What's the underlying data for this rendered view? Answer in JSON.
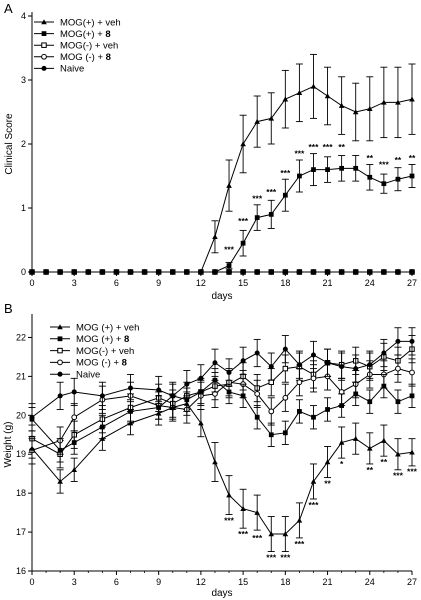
{
  "chart_data": [
    {
      "type": "line",
      "panel_letter": "A",
      "xlabel": "days",
      "ylabel": "Clinical Score",
      "xlim": [
        0,
        27
      ],
      "ylim": [
        0,
        4
      ],
      "x_ticks": [
        0,
        3,
        6,
        9,
        12,
        15,
        18,
        21,
        24,
        27
      ],
      "y_ticks": [
        0,
        1,
        2,
        3,
        4
      ],
      "legend_position": "top-left",
      "legend": [
        {
          "prefix": "MOG(+) + veh",
          "suffix": ""
        },
        {
          "prefix": "MOG(+) + ",
          "suffix": "8"
        },
        {
          "prefix": "MOG(-) + veh",
          "suffix": ""
        },
        {
          "prefix": "MOG (-) + ",
          "suffix": "8"
        },
        {
          "prefix": "Naive",
          "suffix": ""
        }
      ],
      "series": [
        {
          "marker": "triangle-filled",
          "x": [
            0,
            1,
            2,
            3,
            4,
            5,
            6,
            7,
            8,
            9,
            10,
            11,
            12,
            13,
            14,
            15,
            16,
            17,
            18,
            19,
            20,
            21,
            22,
            23,
            24,
            25,
            26,
            27
          ],
          "y": [
            0,
            0,
            0,
            0,
            0,
            0,
            0,
            0,
            0,
            0,
            0,
            0,
            0,
            0.55,
            1.35,
            2.0,
            2.35,
            2.4,
            2.7,
            2.8,
            2.9,
            2.75,
            2.6,
            2.5,
            2.55,
            2.65,
            2.65,
            2.7
          ],
          "err": [
            0,
            0,
            0,
            0,
            0,
            0,
            0,
            0,
            0,
            0,
            0,
            0,
            0,
            0.25,
            0.4,
            0.45,
            0.4,
            0.4,
            0.45,
            0.45,
            0.5,
            0.45,
            0.45,
            0.45,
            0.5,
            0.55,
            0.55,
            0.55
          ]
        },
        {
          "marker": "square-filled",
          "x": [
            0,
            1,
            2,
            3,
            4,
            5,
            6,
            7,
            8,
            9,
            10,
            11,
            12,
            13,
            14,
            15,
            16,
            17,
            18,
            19,
            20,
            21,
            22,
            23,
            24,
            25,
            26,
            27
          ],
          "y": [
            0,
            0,
            0,
            0,
            0,
            0,
            0,
            0,
            0,
            0,
            0,
            0,
            0,
            0,
            0.1,
            0.45,
            0.85,
            0.9,
            1.2,
            1.5,
            1.6,
            1.6,
            1.62,
            1.62,
            1.48,
            1.38,
            1.45,
            1.5
          ],
          "err": [
            0,
            0,
            0,
            0,
            0,
            0,
            0,
            0,
            0,
            0,
            0,
            0,
            0,
            0,
            0.05,
            0.2,
            0.2,
            0.22,
            0.25,
            0.25,
            0.25,
            0.2,
            0.2,
            0.2,
            0.2,
            0.15,
            0.18,
            0.18
          ]
        },
        {
          "marker": "square-open",
          "x": [
            0,
            1,
            2,
            3,
            4,
            5,
            6,
            7,
            8,
            9,
            10,
            11,
            12,
            13,
            14,
            15,
            16,
            17,
            18,
            19,
            20,
            21,
            22,
            23,
            24,
            25,
            26,
            27
          ],
          "y": [
            0,
            0,
            0,
            0,
            0,
            0,
            0,
            0,
            0,
            0,
            0,
            0,
            0,
            0,
            0,
            0,
            0,
            0,
            0,
            0,
            0,
            0,
            0,
            0,
            0,
            0,
            0,
            0
          ]
        },
        {
          "marker": "circle-open",
          "x": [
            0,
            1,
            2,
            3,
            4,
            5,
            6,
            7,
            8,
            9,
            10,
            11,
            12,
            13,
            14,
            15,
            16,
            17,
            18,
            19,
            20,
            21,
            22,
            23,
            24,
            25,
            26,
            27
          ],
          "y": [
            0,
            0,
            0,
            0,
            0,
            0,
            0,
            0,
            0,
            0,
            0,
            0,
            0,
            0,
            0,
            0,
            0,
            0,
            0,
            0,
            0,
            0,
            0,
            0,
            0,
            0,
            0,
            0
          ]
        },
        {
          "marker": "circle-filled",
          "x": [
            0,
            1,
            2,
            3,
            4,
            5,
            6,
            7,
            8,
            9,
            10,
            11,
            12,
            13,
            14,
            15,
            16,
            17,
            18,
            19,
            20,
            21,
            22,
            23,
            24,
            25,
            26,
            27
          ],
          "y": [
            0,
            0,
            0,
            0,
            0,
            0,
            0,
            0,
            0,
            0,
            0,
            0,
            0,
            0,
            0,
            0,
            0,
            0,
            0,
            0,
            0,
            0,
            0,
            0,
            0,
            0,
            0,
            0
          ]
        }
      ],
      "annotations": [
        {
          "x": 14,
          "y": 0.35,
          "text": "***"
        },
        {
          "x": 15,
          "y": 0.8,
          "text": "***"
        },
        {
          "x": 16,
          "y": 1.15,
          "text": "***"
        },
        {
          "x": 17,
          "y": 1.25,
          "text": "***"
        },
        {
          "x": 18,
          "y": 1.55,
          "text": "***"
        },
        {
          "x": 19,
          "y": 1.85,
          "text": "***"
        },
        {
          "x": 20,
          "y": 1.95,
          "text": "***"
        },
        {
          "x": 21,
          "y": 1.95,
          "text": "***"
        },
        {
          "x": 22,
          "y": 1.95,
          "text": "**"
        },
        {
          "x": 24,
          "y": 1.78,
          "text": "**"
        },
        {
          "x": 25,
          "y": 1.68,
          "text": "***"
        },
        {
          "x": 26,
          "y": 1.75,
          "text": "**"
        },
        {
          "x": 27,
          "y": 1.78,
          "text": "**"
        }
      ]
    },
    {
      "type": "line",
      "panel_letter": "B",
      "xlabel": "days",
      "ylabel": "Weight (g)",
      "xlim": [
        0,
        27
      ],
      "ylim": [
        16,
        22.5
      ],
      "x_ticks": [
        0,
        3,
        6,
        9,
        12,
        15,
        18,
        21,
        24,
        27
      ],
      "y_ticks": [
        16,
        17,
        18,
        19,
        20,
        21,
        22
      ],
      "legend_position": "top-left",
      "legend": [
        {
          "prefix": "MOG (+) + veh",
          "suffix": ""
        },
        {
          "prefix": "MOG (+) + ",
          "suffix": "8"
        },
        {
          "prefix": "MOG(-) + veh",
          "suffix": ""
        },
        {
          "prefix": "MOG (-) + ",
          "suffix": "8"
        },
        {
          "prefix": "Naive",
          "suffix": ""
        }
      ],
      "series": [
        {
          "marker": "triangle-filled",
          "x": [
            0,
            2,
            3,
            5,
            7,
            9,
            10,
            11,
            12,
            13,
            14,
            15,
            16,
            17,
            18,
            19,
            20,
            21,
            22,
            23,
            24,
            25,
            26,
            27
          ],
          "y": [
            19.15,
            18.3,
            18.6,
            19.4,
            19.8,
            20.05,
            20.2,
            20.3,
            19.8,
            18.8,
            17.95,
            17.6,
            17.5,
            16.95,
            16.95,
            17.3,
            18.3,
            18.8,
            19.3,
            19.4,
            19.15,
            19.35,
            19.0,
            19.05
          ],
          "err": [
            0.25,
            0.3,
            0.3,
            0.3,
            0.3,
            0.3,
            0.3,
            0.3,
            0.35,
            0.5,
            0.5,
            0.5,
            0.45,
            0.45,
            0.45,
            0.45,
            0.45,
            0.4,
            0.4,
            0.4,
            0.4,
            0.4,
            0.4,
            0.35
          ]
        },
        {
          "marker": "square-filled",
          "x": [
            0,
            2,
            3,
            5,
            7,
            9,
            10,
            11,
            12,
            13,
            14,
            15,
            16,
            17,
            18,
            19,
            20,
            21,
            22,
            23,
            24,
            25,
            26,
            27
          ],
          "y": [
            19.9,
            19.1,
            19.3,
            19.7,
            20.1,
            20.2,
            20.5,
            20.4,
            20.6,
            20.9,
            20.6,
            20.5,
            19.95,
            19.5,
            19.55,
            20.1,
            19.95,
            20.15,
            20.25,
            20.55,
            20.35,
            20.75,
            20.35,
            20.5
          ],
          "err": [
            0.3,
            0.3,
            0.3,
            0.3,
            0.3,
            0.3,
            0.3,
            0.3,
            0.3,
            0.3,
            0.3,
            0.3,
            0.3,
            0.3,
            0.3,
            0.3,
            0.3,
            0.3,
            0.3,
            0.3,
            0.3,
            0.3,
            0.3,
            0.3
          ]
        },
        {
          "marker": "square-open",
          "x": [
            0,
            2,
            3,
            5,
            7,
            9,
            10,
            11,
            12,
            13,
            14,
            15,
            16,
            17,
            18,
            19,
            20,
            21,
            22,
            23,
            24,
            25,
            26,
            27
          ],
          "y": [
            19.4,
            19.0,
            19.5,
            19.9,
            20.2,
            20.45,
            20.3,
            20.5,
            20.6,
            20.75,
            20.8,
            21.0,
            20.7,
            20.85,
            21.2,
            21.25,
            21.05,
            21.35,
            21.3,
            21.4,
            21.25,
            21.5,
            21.4,
            21.7
          ],
          "err": [
            0.35,
            0.35,
            0.35,
            0.35,
            0.35,
            0.35,
            0.35,
            0.35,
            0.35,
            0.35,
            0.35,
            0.35,
            0.35,
            0.35,
            0.35,
            0.35,
            0.35,
            0.35,
            0.35,
            0.35,
            0.35,
            0.35,
            0.35,
            0.35
          ]
        },
        {
          "marker": "circle-open",
          "x": [
            0,
            2,
            3,
            5,
            7,
            9,
            10,
            11,
            12,
            13,
            14,
            15,
            16,
            17,
            18,
            19,
            20,
            21,
            22,
            23,
            24,
            25,
            26,
            27
          ],
          "y": [
            19.1,
            19.35,
            19.95,
            20.4,
            20.5,
            20.25,
            20.2,
            20.15,
            20.5,
            20.55,
            20.85,
            20.8,
            20.55,
            20.1,
            20.45,
            20.85,
            20.95,
            21.0,
            20.6,
            20.8,
            21.05,
            21.05,
            21.2,
            21.1
          ],
          "err": [
            0.35,
            0.35,
            0.35,
            0.35,
            0.35,
            0.35,
            0.35,
            0.35,
            0.35,
            0.35,
            0.35,
            0.35,
            0.35,
            0.35,
            0.35,
            0.35,
            0.35,
            0.35,
            0.35,
            0.35,
            0.35,
            0.35,
            0.35,
            0.35
          ]
        },
        {
          "marker": "circle-filled",
          "x": [
            0,
            2,
            3,
            5,
            7,
            9,
            10,
            11,
            12,
            13,
            14,
            15,
            16,
            17,
            18,
            19,
            20,
            21,
            22,
            23,
            24,
            25,
            26,
            27
          ],
          "y": [
            19.95,
            20.5,
            20.6,
            20.5,
            20.7,
            20.65,
            20.5,
            20.8,
            20.95,
            21.35,
            21.1,
            21.4,
            21.6,
            21.25,
            21.7,
            21.3,
            21.55,
            21.35,
            21.25,
            21.2,
            21.3,
            21.6,
            21.9,
            21.9
          ],
          "err": [
            0.35,
            0.35,
            0.35,
            0.35,
            0.35,
            0.35,
            0.35,
            0.35,
            0.35,
            0.35,
            0.35,
            0.35,
            0.35,
            0.35,
            0.35,
            0.35,
            0.35,
            0.35,
            0.35,
            0.35,
            0.35,
            0.35,
            0.35,
            0.35
          ]
        }
      ],
      "annotations": [
        {
          "x": 14,
          "y": 17.3,
          "text": "***"
        },
        {
          "x": 15,
          "y": 16.95,
          "text": "***"
        },
        {
          "x": 16,
          "y": 16.85,
          "text": "***"
        },
        {
          "x": 17,
          "y": 16.35,
          "text": "***"
        },
        {
          "x": 18,
          "y": 16.35,
          "text": "***"
        },
        {
          "x": 19,
          "y": 16.7,
          "text": "***"
        },
        {
          "x": 20,
          "y": 17.7,
          "text": "***"
        },
        {
          "x": 21,
          "y": 18.25,
          "text": "**"
        },
        {
          "x": 22,
          "y": 18.75,
          "text": "*"
        },
        {
          "x": 24,
          "y": 18.6,
          "text": "**"
        },
        {
          "x": 25,
          "y": 18.8,
          "text": "**"
        },
        {
          "x": 26,
          "y": 18.45,
          "text": "***"
        },
        {
          "x": 27,
          "y": 18.55,
          "text": "***"
        }
      ]
    }
  ]
}
